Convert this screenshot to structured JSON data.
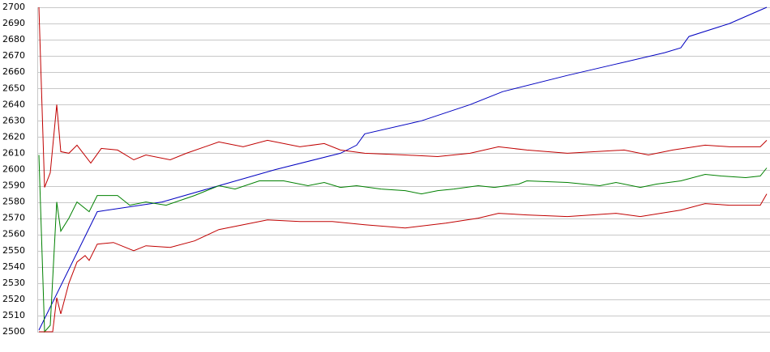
{
  "chart_data": {
    "type": "line",
    "ylim": [
      2500,
      2700
    ],
    "yticks": [
      2500,
      2510,
      2520,
      2530,
      2540,
      2550,
      2560,
      2570,
      2580,
      2590,
      2600,
      2610,
      2620,
      2630,
      2640,
      2650,
      2660,
      2670,
      2680,
      2690,
      2700
    ],
    "xlim": [
      0,
      900
    ],
    "grid": true,
    "series": [
      {
        "color": "#0000c0",
        "x": [
          2,
          74,
          154,
          224,
          294,
          374,
          394,
          404,
          474,
          534,
          574,
          654,
          714,
          774,
          794,
          804,
          854,
          900
        ],
        "values": [
          2501,
          2574,
          2580,
          2590,
          2600,
          2610,
          2615,
          2622,
          2630,
          2640,
          2648,
          2658,
          2665,
          2672,
          2675,
          2682,
          2690,
          2700
        ]
      },
      {
        "color": "#008000",
        "x": [
          2,
          9,
          16,
          24,
          29,
          39,
          49,
          64,
          74,
          99,
          114,
          134,
          159,
          194,
          224,
          244,
          274,
          304,
          334,
          354,
          374,
          394,
          424,
          454,
          474,
          494,
          514,
          544,
          564,
          594,
          604,
          654,
          694,
          714,
          744,
          764,
          794,
          824,
          844,
          874,
          892,
          900
        ],
        "values": [
          2609,
          2500,
          2504,
          2580,
          2562,
          2570,
          2580,
          2574,
          2584,
          2584,
          2578,
          2580,
          2578,
          2584,
          2590,
          2588,
          2593,
          2593,
          2590,
          2592,
          2589,
          2590,
          2588,
          2587,
          2585,
          2587,
          2588,
          2590,
          2589,
          2591,
          2593,
          2592,
          2590,
          2592,
          2589,
          2591,
          2593,
          2597,
          2596,
          2595,
          2596,
          2601
        ]
      },
      {
        "color": "#c00000",
        "x": [
          2,
          9,
          16,
          24,
          29,
          39,
          49,
          66,
          79,
          99,
          119,
          134,
          164,
          184,
          224,
          254,
          284,
          324,
          354,
          374,
          404,
          454,
          494,
          534,
          569,
          604,
          654,
          724,
          754,
          784,
          824,
          854,
          892,
          900
        ],
        "values": [
          2700,
          2589,
          2598,
          2640,
          2611,
          2610,
          2615,
          2604,
          2613,
          2612,
          2606,
          2609,
          2606,
          2610,
          2617,
          2614,
          2618,
          2614,
          2616,
          2612,
          2610,
          2609,
          2608,
          2610,
          2614,
          2612,
          2610,
          2612,
          2609,
          2612,
          2615,
          2614,
          2614,
          2618
        ]
      },
      {
        "color": "#c00000",
        "x": [
          2,
          19,
          24,
          29,
          39,
          49,
          59,
          64,
          74,
          94,
          119,
          134,
          164,
          194,
          224,
          254,
          284,
          324,
          364,
          404,
          454,
          504,
          544,
          569,
          604,
          654,
          714,
          744,
          794,
          824,
          854,
          892,
          900
        ],
        "values": [
          2500,
          2500,
          2521,
          2511,
          2530,
          2543,
          2547,
          2544,
          2554,
          2555,
          2550,
          2553,
          2552,
          2556,
          2563,
          2566,
          2569,
          2568,
          2568,
          2566,
          2564,
          2567,
          2570,
          2573,
          2572,
          2571,
          2573,
          2571,
          2575,
          2579,
          2578,
          2578,
          2585
        ]
      }
    ]
  }
}
